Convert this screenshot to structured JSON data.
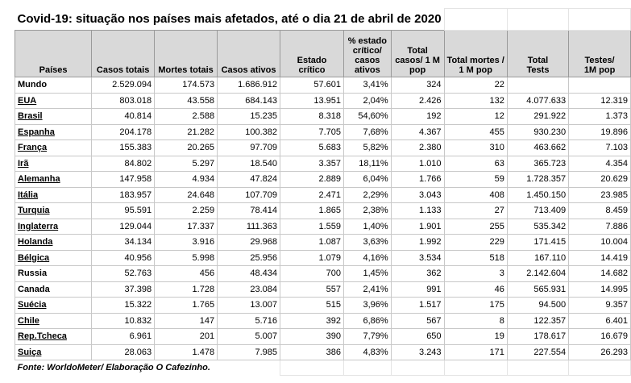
{
  "title": "Covid-19: situação nos países mais afetados, até o dia 21 de abril de 2020",
  "table": {
    "header": [
      [
        "Países"
      ],
      [
        "Casos totais"
      ],
      [
        "Mortes totais"
      ],
      [
        "Casos ativos"
      ],
      [
        "Estado",
        "crítico"
      ],
      [
        "% estado",
        "crítico/",
        "casos",
        "ativos"
      ],
      [
        "Total",
        "casos/ 1 M",
        "pop"
      ],
      [
        "Total mortes /",
        "1 M pop"
      ],
      [
        "Total",
        "Tests"
      ],
      [
        "Testes/",
        "1M pop"
      ]
    ],
    "rows": [
      [
        "Mundo",
        "2.529.094",
        "174.573",
        "1.686.912",
        "57.601",
        "3,41%",
        "324",
        "22"
      ],
      [
        "EUA",
        "803.018",
        "43.558",
        "684.143",
        "13.951",
        "2,04%",
        "2.426",
        "132",
        "4.077.633",
        "12.319"
      ],
      [
        "Brasil",
        "40.814",
        "2.588",
        "15.235",
        "8.318",
        "54,60%",
        "192",
        "12",
        "291.922",
        "1.373"
      ],
      [
        "Espanha",
        "204.178",
        "21.282",
        "100.382",
        "7.705",
        "7,68%",
        "4.367",
        "455",
        "930.230",
        "19.896"
      ],
      [
        "França",
        "155.383",
        "20.265",
        "97.709",
        "5.683",
        "5,82%",
        "2.380",
        "310",
        "463.662",
        "7.103"
      ],
      [
        "Irã",
        "84.802",
        "5.297",
        "18.540",
        "3.357",
        "18,11%",
        "1.010",
        "63",
        "365.723",
        "4.354"
      ],
      [
        "Alemanha",
        "147.958",
        "4.934",
        "47.824",
        "2.889",
        "6,04%",
        "1.766",
        "59",
        "1.728.357",
        "20.629"
      ],
      [
        "Itália",
        "183.957",
        "24.648",
        "107.709",
        "2.471",
        "2,29%",
        "3.043",
        "408",
        "1.450.150",
        "23.985"
      ],
      [
        "Turquia",
        "95.591",
        "2.259",
        "78.414",
        "1.865",
        "2,38%",
        "1.133",
        "27",
        "713.409",
        "8.459"
      ],
      [
        "Inglaterra",
        "129.044",
        "17.337",
        "111.363",
        "1.559",
        "1,40%",
        "1.901",
        "255",
        "535.342",
        "7.886"
      ],
      [
        "Holanda",
        "34.134",
        "3.916",
        "29.968",
        "1.087",
        "3,63%",
        "1.992",
        "229",
        "171.415",
        "10.004"
      ],
      [
        "Bélgica",
        "40.956",
        "5.998",
        "25.956",
        "1.079",
        "4,16%",
        "3.534",
        "518",
        "167.110",
        "14.419"
      ],
      [
        "Russia",
        "52.763",
        "456",
        "48.434",
        "700",
        "1,45%",
        "362",
        "3",
        "2.142.604",
        "14.682"
      ],
      [
        "Canada",
        "37.398",
        "1.728",
        "23.084",
        "557",
        "2,41%",
        "991",
        "46",
        "565.931",
        "14.995"
      ],
      [
        "Suécia",
        "15.322",
        "1.765",
        "13.007",
        "515",
        "3,96%",
        "1.517",
        "175",
        "94.500",
        "9.357"
      ],
      [
        "Chile",
        "10.832",
        "147",
        "5.716",
        "392",
        "6,86%",
        "567",
        "8",
        "122.357",
        "6.401"
      ],
      [
        "Rep.Tcheca",
        "6.961",
        "201",
        "5.007",
        "390",
        "7,79%",
        "650",
        "19",
        "178.617",
        "16.679"
      ],
      [
        "Suiça",
        "28.063",
        "1.478",
        "7.985",
        "386",
        "4,83%",
        "3.243",
        "171",
        "227.554",
        "26.293"
      ]
    ]
  },
  "footer": "Fonte: WorldoMeter/ Elaboração O Cafezinho."
}
